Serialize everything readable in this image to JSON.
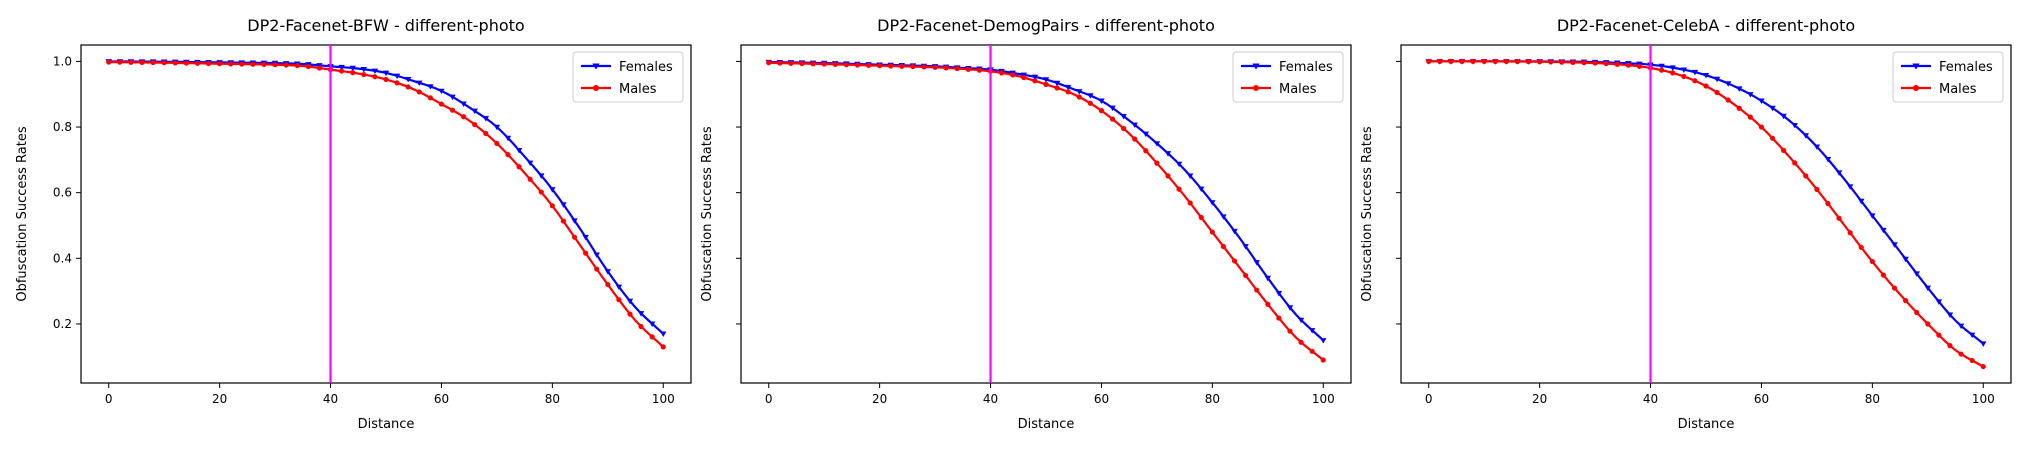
{
  "chart_data": [
    {
      "type": "line",
      "title": "DP2-Facenet-BFW - different-photo",
      "xlabel": "Distance",
      "ylabel": "Obfuscation Success Rates",
      "xlim": [
        -5,
        105
      ],
      "ylim": [
        0.02,
        1.05
      ],
      "xticks": [
        0,
        20,
        40,
        60,
        80,
        100
      ],
      "yticks": [
        0.2,
        0.4,
        0.6,
        0.8,
        1.0
      ],
      "ytick_labels": [
        "0.2",
        "0.4",
        "0.6",
        "0.8",
        "1.0"
      ],
      "vline": 40,
      "legend_position": "upper right",
      "x": [
        0,
        10,
        20,
        30,
        35,
        40,
        45,
        50,
        55,
        60,
        65,
        70,
        75,
        80,
        85,
        90,
        95,
        100
      ],
      "series": [
        {
          "name": "Females",
          "color": "#0000ff",
          "marker": "triangle-down",
          "values": [
            1.0,
            0.999,
            0.997,
            0.995,
            0.992,
            0.985,
            0.978,
            0.965,
            0.94,
            0.91,
            0.86,
            0.8,
            0.71,
            0.61,
            0.49,
            0.36,
            0.25,
            0.17
          ]
        },
        {
          "name": "Males",
          "color": "#ff0000",
          "marker": "circle",
          "values": [
            0.998,
            0.996,
            0.993,
            0.99,
            0.986,
            0.975,
            0.963,
            0.945,
            0.915,
            0.87,
            0.82,
            0.75,
            0.66,
            0.56,
            0.44,
            0.32,
            0.21,
            0.13
          ]
        }
      ]
    },
    {
      "type": "line",
      "title": "DP2-Facenet-DemogPairs - different-photo",
      "xlabel": "Distance",
      "ylabel": "Obfuscation Success Rates",
      "xlim": [
        -5,
        105
      ],
      "ylim": [
        0.02,
        1.05
      ],
      "xticks": [
        0,
        20,
        40,
        60,
        80,
        100
      ],
      "yticks": [
        0.2,
        0.4,
        0.6,
        0.8,
        1.0
      ],
      "ytick_labels": [
        "",
        "",
        "",
        "",
        ""
      ],
      "vline": 40,
      "legend_position": "upper right",
      "x": [
        0,
        10,
        20,
        30,
        35,
        40,
        45,
        50,
        55,
        60,
        65,
        70,
        75,
        80,
        85,
        90,
        95,
        100
      ],
      "series": [
        {
          "name": "Females",
          "color": "#0000ff",
          "marker": "triangle-down",
          "values": [
            0.998,
            0.995,
            0.99,
            0.985,
            0.98,
            0.975,
            0.962,
            0.945,
            0.915,
            0.88,
            0.82,
            0.75,
            0.67,
            0.57,
            0.46,
            0.34,
            0.23,
            0.15
          ]
        },
        {
          "name": "Males",
          "color": "#ff0000",
          "marker": "circle",
          "values": [
            0.996,
            0.992,
            0.987,
            0.982,
            0.977,
            0.97,
            0.955,
            0.93,
            0.9,
            0.85,
            0.78,
            0.69,
            0.59,
            0.48,
            0.37,
            0.26,
            0.16,
            0.09
          ]
        }
      ]
    },
    {
      "type": "line",
      "title": "DP2-Facenet-CelebA - different-photo",
      "xlabel": "Distance",
      "ylabel": "Obfuscation Success Rates",
      "xlim": [
        -5,
        105
      ],
      "ylim": [
        0.02,
        1.05
      ],
      "xticks": [
        0,
        20,
        40,
        60,
        80,
        100
      ],
      "yticks": [
        0.2,
        0.4,
        0.6,
        0.8,
        1.0
      ],
      "ytick_labels": [
        "",
        "",
        "",
        "",
        ""
      ],
      "vline": 40,
      "legend_position": "upper right",
      "x": [
        0,
        10,
        20,
        30,
        35,
        40,
        45,
        50,
        55,
        60,
        65,
        70,
        75,
        80,
        85,
        90,
        95,
        100
      ],
      "series": [
        {
          "name": "Females",
          "color": "#0000ff",
          "marker": "triangle-down",
          "values": [
            1.0,
            1.0,
            1.0,
            0.998,
            0.995,
            0.99,
            0.978,
            0.958,
            0.925,
            0.88,
            0.82,
            0.74,
            0.64,
            0.53,
            0.42,
            0.31,
            0.21,
            0.14
          ]
        },
        {
          "name": "Males",
          "color": "#ff0000",
          "marker": "circle",
          "values": [
            1.0,
            1.0,
            0.999,
            0.995,
            0.99,
            0.98,
            0.96,
            0.925,
            0.87,
            0.8,
            0.71,
            0.61,
            0.5,
            0.39,
            0.29,
            0.2,
            0.12,
            0.07
          ]
        }
      ]
    }
  ]
}
